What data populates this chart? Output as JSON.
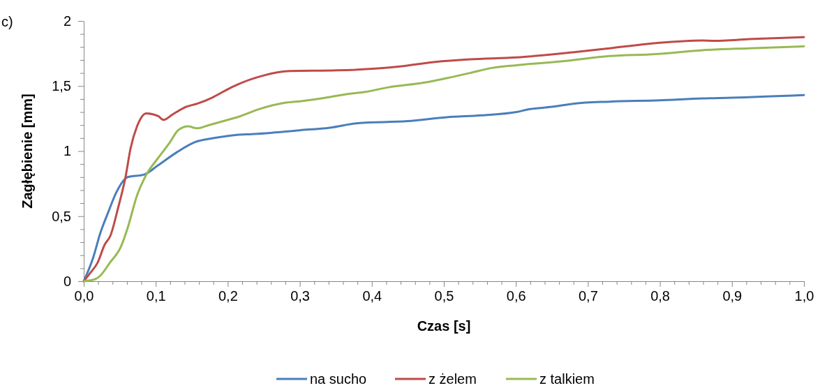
{
  "chart_data": {
    "type": "line",
    "xlabel": "Czas [s]",
    "ylabel": "Zagłębienie [mm]",
    "annotations": [
      "c)"
    ],
    "xlim": [
      0,
      1
    ],
    "ylim": [
      0,
      2
    ],
    "xticks": [
      {
        "value": 0,
        "label": "0,0"
      },
      {
        "value": 0.02,
        "label": null
      },
      {
        "value": 0.04,
        "label": null
      },
      {
        "value": 0.06,
        "label": null
      },
      {
        "value": 0.08,
        "label": null
      },
      {
        "value": 0.1,
        "label": "0,1"
      },
      {
        "value": 0.12,
        "label": null
      },
      {
        "value": 0.14,
        "label": null
      },
      {
        "value": 0.16,
        "label": null
      },
      {
        "value": 0.18,
        "label": null
      },
      {
        "value": 0.2,
        "label": "0,2"
      },
      {
        "value": 0.22,
        "label": null
      },
      {
        "value": 0.24,
        "label": null
      },
      {
        "value": 0.26,
        "label": null
      },
      {
        "value": 0.28,
        "label": null
      },
      {
        "value": 0.3,
        "label": "0,3"
      },
      {
        "value": 0.32,
        "label": null
      },
      {
        "value": 0.34,
        "label": null
      },
      {
        "value": 0.36,
        "label": null
      },
      {
        "value": 0.38,
        "label": null
      },
      {
        "value": 0.4,
        "label": "0,4"
      },
      {
        "value": 0.42,
        "label": null
      },
      {
        "value": 0.44,
        "label": null
      },
      {
        "value": 0.46,
        "label": null
      },
      {
        "value": 0.48,
        "label": null
      },
      {
        "value": 0.5,
        "label": "0,5"
      },
      {
        "value": 0.52,
        "label": null
      },
      {
        "value": 0.54,
        "label": null
      },
      {
        "value": 0.56,
        "label": null
      },
      {
        "value": 0.58,
        "label": null
      },
      {
        "value": 0.6,
        "label": "0,6"
      },
      {
        "value": 0.62,
        "label": null
      },
      {
        "value": 0.64,
        "label": null
      },
      {
        "value": 0.66,
        "label": null
      },
      {
        "value": 0.68,
        "label": null
      },
      {
        "value": 0.7,
        "label": "0,7"
      },
      {
        "value": 0.72,
        "label": null
      },
      {
        "value": 0.74,
        "label": null
      },
      {
        "value": 0.76,
        "label": null
      },
      {
        "value": 0.78,
        "label": null
      },
      {
        "value": 0.8,
        "label": "0,8"
      },
      {
        "value": 0.82,
        "label": null
      },
      {
        "value": 0.84,
        "label": null
      },
      {
        "value": 0.86,
        "label": null
      },
      {
        "value": 0.88,
        "label": null
      },
      {
        "value": 0.9,
        "label": "0,9"
      },
      {
        "value": 0.92,
        "label": null
      },
      {
        "value": 0.94,
        "label": null
      },
      {
        "value": 0.96,
        "label": null
      },
      {
        "value": 0.98,
        "label": null
      },
      {
        "value": 1,
        "label": "1,0"
      }
    ],
    "yticks": [
      0,
      {
        "value": 0.1,
        "label": null
      },
      {
        "value": 0.2,
        "label": null
      },
      {
        "value": 0.3,
        "label": null
      },
      {
        "value": 0.4,
        "label": null
      },
      {
        "value": 0.5,
        "label": "0,5"
      },
      {
        "value": 0.6,
        "label": null
      },
      {
        "value": 0.7,
        "label": null
      },
      {
        "value": 0.8,
        "label": null
      },
      {
        "value": 0.9,
        "label": null
      },
      1,
      {
        "value": 1.1,
        "label": null
      },
      {
        "value": 1.2,
        "label": null
      },
      {
        "value": 1.3,
        "label": null
      },
      {
        "value": 1.4,
        "label": null
      },
      {
        "value": 1.5,
        "label": "1,5"
      },
      {
        "value": 1.6,
        "label": null
      },
      {
        "value": 1.7,
        "label": null
      },
      {
        "value": 1.8,
        "label": null
      },
      {
        "value": 1.9,
        "label": null
      },
      2
    ],
    "legend": "bottom",
    "marker": "none",
    "line_style": "solid",
    "series": [
      {
        "name": "na sucho",
        "color": "#4a7ebb",
        "x": [
          0,
          0.013,
          0.023,
          0.034,
          0.045,
          0.061,
          0.084,
          0.103,
          0.129,
          0.155,
          0.181,
          0.213,
          0.233,
          0.3,
          0.342,
          0.381,
          0.45,
          0.504,
          0.552,
          0.601,
          0.617,
          0.65,
          0.681,
          0.73,
          0.8,
          0.859,
          0.9,
          1.0
        ],
        "values": [
          0,
          0.18,
          0.37,
          0.53,
          0.68,
          0.8,
          0.82,
          0.89,
          0.99,
          1.07,
          1.1,
          1.125,
          1.13,
          1.16,
          1.18,
          1.215,
          1.23,
          1.26,
          1.275,
          1.3,
          1.32,
          1.34,
          1.365,
          1.38,
          1.39,
          1.405,
          1.41,
          1.43
        ]
      },
      {
        "name": "z żelem",
        "color": "#be4b48",
        "x": [
          0,
          0.01,
          0.019,
          0.029,
          0.037,
          0.048,
          0.058,
          0.065,
          0.074,
          0.087,
          0.103,
          0.111,
          0.123,
          0.142,
          0.158,
          0.178,
          0.2,
          0.213,
          0.249,
          0.287,
          0.352,
          0.439,
          0.488,
          0.536,
          0.601,
          0.681,
          0.73,
          0.795,
          0.859,
          0.875,
          0.924,
          1.0
        ],
        "values": [
          0,
          0.07,
          0.14,
          0.28,
          0.35,
          0.57,
          0.8,
          1.02,
          1.19,
          1.29,
          1.27,
          1.24,
          1.28,
          1.34,
          1.365,
          1.41,
          1.475,
          1.51,
          1.58,
          1.615,
          1.62,
          1.65,
          1.685,
          1.705,
          1.72,
          1.76,
          1.79,
          1.83,
          1.85,
          1.847,
          1.86,
          1.875
        ]
      },
      {
        "name": "z talkiem",
        "color": "#98b954",
        "x": [
          0,
          0.016,
          0.023,
          0.036,
          0.052,
          0.061,
          0.074,
          0.087,
          0.103,
          0.12,
          0.131,
          0.145,
          0.157,
          0.174,
          0.2,
          0.213,
          0.245,
          0.278,
          0.304,
          0.336,
          0.368,
          0.391,
          0.423,
          0.472,
          0.504,
          0.536,
          0.568,
          0.601,
          0.665,
          0.73,
          0.795,
          0.859,
          0.924,
          1.0
        ],
        "values": [
          0,
          0.016,
          0.043,
          0.14,
          0.27,
          0.41,
          0.66,
          0.82,
          0.945,
          1.07,
          1.16,
          1.19,
          1.175,
          1.2,
          1.24,
          1.26,
          1.325,
          1.37,
          1.385,
          1.41,
          1.44,
          1.455,
          1.49,
          1.525,
          1.56,
          1.6,
          1.64,
          1.66,
          1.69,
          1.73,
          1.745,
          1.775,
          1.79,
          1.805
        ]
      }
    ]
  }
}
